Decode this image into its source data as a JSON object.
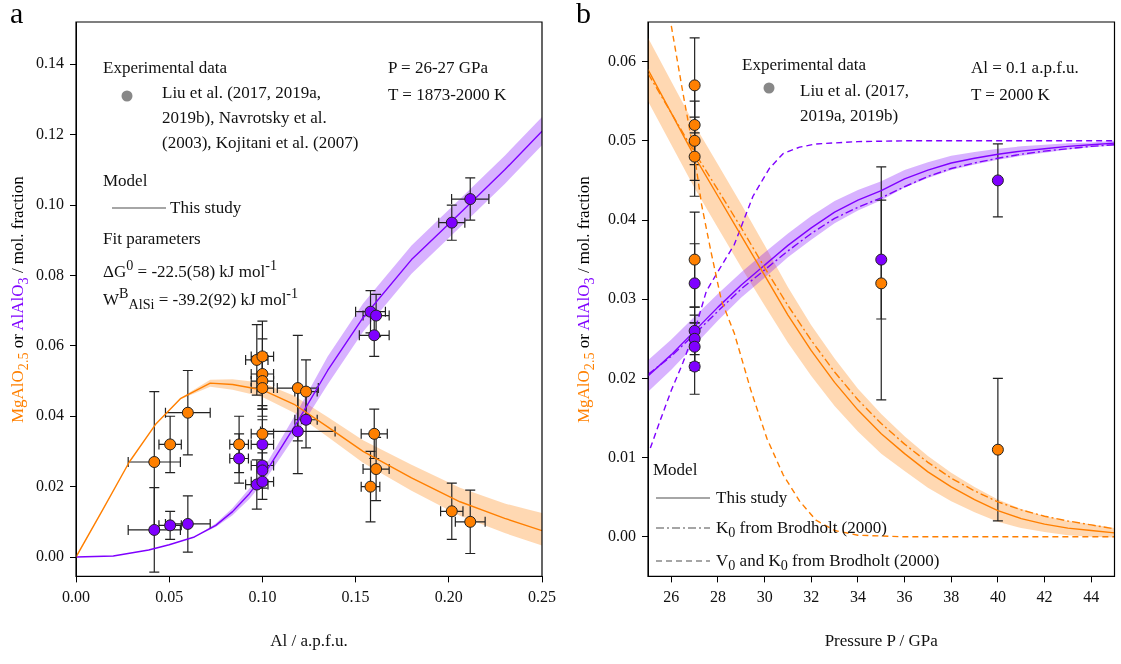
{
  "chart_data": [
    {
      "type": "scatter",
      "title": "a",
      "xlabel": "Al / a.p.f.u.",
      "ylabel": "MgAlO$_{2.5}$ or AlAlO$_{3}$ / mol. fraction",
      "xlim": [
        0,
        0.25
      ],
      "ylim": [
        -0.0055,
        0.152
      ],
      "xticks": [
        {
          "value": 0,
          "label": "0.00"
        },
        {
          "value": 0.05,
          "label": "0.05"
        },
        {
          "value": 0.1,
          "label": "0.10"
        },
        {
          "value": 0.15,
          "label": "0.15"
        },
        {
          "value": 0.2,
          "label": "0.20"
        },
        {
          "value": 0.25,
          "label": "0.25"
        }
      ],
      "yticks": [
        {
          "value": 0,
          "label": "0.00"
        },
        {
          "value": 0.02,
          "label": "0.02"
        },
        {
          "value": 0.04,
          "label": "0.04"
        },
        {
          "value": 0.06,
          "label": "0.06"
        },
        {
          "value": 0.08,
          "label": "0.08"
        },
        {
          "value": 0.1,
          "label": "0.10"
        },
        {
          "value": 0.12,
          "label": "0.12"
        },
        {
          "value": 0.14,
          "label": "0.14"
        }
      ],
      "grid": false,
      "legend": false,
      "annotations": [
        "Experimental data",
        "Liu et al. (2017, 2019a, 2019b), Navrotsky et al. (2003), Kojitani et al. (2007)",
        "Model",
        "This study",
        "Fit parameters",
        "ΔG$^{0}$ = -22.5(58) kJ mol$^{-1}$",
        "W$^{B}$$_{AlSi}$ = -39.2(92) kJ mol$^{-1}$",
        "P = 26-27 GPa",
        "T = 1873-2000 K"
      ],
      "series": [
        {
          "type": "scatter",
          "marker": "circle",
          "color": "#ff8000",
          "x": [
            0.042,
            0.0505,
            0.06,
            0.0875,
            0.097,
            0.1,
            0.1,
            0.1,
            0.1,
            0.1,
            0.119,
            0.1234,
            0.16,
            0.161,
            0.158,
            0.2016,
            0.2115
          ],
          "values": [
            0.027,
            0.032,
            0.041,
            0.032,
            0.056,
            0.057,
            0.052,
            0.05,
            0.048,
            0.035,
            0.048,
            0.047,
            0.035,
            0.025,
            0.02,
            0.013,
            0.01
          ],
          "errors": [
            0.02,
            0.008,
            0.012,
            0.008,
            0.01,
            0.01,
            0.01,
            0.008,
            0.008,
            0.008,
            0.015,
            0.009,
            0.007,
            0.009,
            0.01,
            0.008,
            0.009
          ],
          "xerrors": [
            0.014,
            0.006,
            0.012,
            0.005,
            0.006,
            0.006,
            0.006,
            0.006,
            0.006,
            0.006,
            0.011,
            0.006,
            0.007,
            0.007,
            0.005,
            0.006,
            0.008
          ]
        },
        {
          "type": "scatter",
          "marker": "circle",
          "color": "#7f00ff",
          "x": [
            0.042,
            0.0505,
            0.06,
            0.0875,
            0.097,
            0.1,
            0.1,
            0.1,
            0.1,
            0.119,
            0.1234,
            0.158,
            0.161,
            0.16,
            0.2016,
            0.2115
          ],
          "values": [
            0.0077,
            0.009,
            0.0094,
            0.028,
            0.0206,
            0.032,
            0.026,
            0.0246,
            0.0214,
            0.0357,
            0.039,
            0.0697,
            0.0686,
            0.063,
            0.095,
            0.1017
          ],
          "errors": [
            0.012,
            0.004,
            0.008,
            0.007,
            0.007,
            0.007,
            0.005,
            0.005,
            0.005,
            0.012,
            0.008,
            0.006,
            0.006,
            0.006,
            0.005,
            0.006
          ],
          "xerrors": [
            0.014,
            0.006,
            0.012,
            0.005,
            0.006,
            0.006,
            0.006,
            null,
            0.006,
            0.02,
            0.006,
            0.008,
            0.007,
            0.008,
            0.007,
            0.01
          ]
        },
        {
          "type": "line",
          "color": "#ff7f00",
          "line_style": "solid",
          "x": [
            0,
            0.0146,
            0.0286,
            0.0427,
            0.056,
            0.072,
            0.084,
            0.1,
            0.117,
            0.135,
            0.154,
            0.18,
            0.206,
            0.23,
            0.25
          ],
          "values": [
            0,
            0.0137,
            0.027,
            0.0377,
            0.045,
            0.0494,
            0.049,
            0.0475,
            0.0434,
            0.037,
            0.03,
            0.0225,
            0.0157,
            0.011,
            0.0075
          ],
          "lower": [
            0,
            0.0137,
            0.027,
            0.0377,
            0.0448,
            0.0484,
            0.0475,
            0.0455,
            0.041,
            0.0342,
            0.0268,
            0.0188,
            0.0117,
            0.0068,
            0.0033
          ],
          "upper": [
            0,
            0.0137,
            0.027,
            0.0377,
            0.0452,
            0.0504,
            0.0505,
            0.0495,
            0.0458,
            0.0398,
            0.0332,
            0.0262,
            0.0197,
            0.0152,
            0.0125
          ]
        },
        {
          "type": "line",
          "color": "#7f00ff",
          "line_style": "solid",
          "x": [
            0,
            0.02,
            0.039,
            0.05,
            0.0635,
            0.075,
            0.084,
            0.093,
            0.1016,
            0.11,
            0.119,
            0.135,
            0.154,
            0.18,
            0.206,
            0.23,
            0.25
          ],
          "values": [
            0,
            0.0003,
            0.002,
            0.0035,
            0.0057,
            0.009,
            0.0129,
            0.018,
            0.024,
            0.031,
            0.0386,
            0.053,
            0.068,
            0.0845,
            0.0977,
            0.11,
            0.121
          ],
          "lower": [
            0,
            0.0003,
            0.002,
            0.0035,
            0.0057,
            0.0085,
            0.0119,
            0.0165,
            0.022,
            0.0285,
            0.0356,
            0.049,
            0.064,
            0.0805,
            0.0937,
            0.106,
            0.117
          ],
          "upper": [
            0,
            0.0003,
            0.002,
            0.0035,
            0.0057,
            0.0095,
            0.0139,
            0.0195,
            0.026,
            0.0335,
            0.0416,
            0.057,
            0.072,
            0.0885,
            0.1017,
            0.114,
            0.125
          ]
        }
      ]
    },
    {
      "type": "scatter",
      "title": "b",
      "xlabel": "Pressure P / GPa",
      "ylabel": "MgAlO$_{2.5}$ or AlAlO$_{3}$ / mol. fraction",
      "xlim": [
        25,
        45
      ],
      "ylim": [
        -0.005,
        0.065
      ],
      "xticks": [
        26,
        28,
        30,
        32,
        34,
        36,
        38,
        40,
        42,
        44
      ],
      "yticks": [
        {
          "value": 0,
          "label": "0.00"
        },
        {
          "value": 0.01,
          "label": "0.01"
        },
        {
          "value": 0.02,
          "label": "0.02"
        },
        {
          "value": 0.03,
          "label": "0.03"
        },
        {
          "value": 0.04,
          "label": "0.04"
        },
        {
          "value": 0.05,
          "label": "0.05"
        },
        {
          "value": 0.06,
          "label": "0.06"
        }
      ],
      "grid": false,
      "legend": false,
      "annotations": [
        "Experimental data",
        "Liu et al. (2017, 2019a, 2019b)",
        "Al = 0.1 a.p.f.u.",
        "T = 2000 K",
        "Model",
        "This study",
        "K$_{0}$ from Brodholt (2000)",
        "V$_{0}$ and K$_{0}$ from Brodholt (2000)"
      ],
      "series": [
        {
          "type": "scatter",
          "marker": "circle",
          "color": "#ff8000",
          "x": [
            27,
            27,
            27,
            27,
            27,
            35,
            40
          ],
          "values": [
            0.057,
            0.052,
            0.05,
            0.048,
            0.035,
            0.032,
            0.011
          ],
          "errors": [
            0.006,
            0.005,
            0.005,
            0.005,
            0.006,
            0.0147,
            0.009
          ]
        },
        {
          "type": "scatter",
          "marker": "circle",
          "color": "#7f00ff",
          "x": [
            27,
            27,
            27,
            27,
            27,
            35,
            40
          ],
          "values": [
            0.032,
            0.026,
            0.025,
            0.024,
            0.0215,
            0.035,
            0.045
          ],
          "errors": [
            0.005,
            0.003,
            0.003,
            0.003,
            0.0035,
            0.0075,
            0.0046
          ]
        },
        {
          "type": "line",
          "color": "#ff7f00",
          "line_style": "solid",
          "x": [
            25,
            26,
            27,
            28,
            29,
            30,
            31,
            32,
            33,
            34,
            35,
            36,
            37,
            38,
            39,
            40,
            41,
            42,
            43,
            44,
            45
          ],
          "values": [
            0.059,
            0.0535,
            0.048,
            0.043,
            0.038,
            0.033,
            0.028,
            0.0235,
            0.0195,
            0.016,
            0.013,
            0.0105,
            0.0082,
            0.0063,
            0.0047,
            0.0033,
            0.0023,
            0.0016,
            0.0011,
            0.0008,
            0.0005
          ],
          "lower": [
            0.055,
            0.0495,
            0.044,
            0.039,
            0.034,
            0.0292,
            0.0245,
            0.0203,
            0.0165,
            0.0133,
            0.0105,
            0.0083,
            0.0062,
            0.0045,
            0.0031,
            0.0019,
            0.0011,
            0.0006,
            0.0002,
            0,
            -0.0001
          ],
          "upper": [
            0.063,
            0.0575,
            0.052,
            0.047,
            0.042,
            0.0368,
            0.0315,
            0.0267,
            0.0225,
            0.0187,
            0.0155,
            0.0127,
            0.0102,
            0.0081,
            0.0063,
            0.0047,
            0.0035,
            0.0026,
            0.002,
            0.0016,
            0.0011
          ]
        },
        {
          "type": "line",
          "color": "#ff7f00",
          "line_style": "dashdot",
          "x": [
            25,
            26,
            27,
            28,
            29,
            30,
            31,
            32,
            33,
            34,
            35,
            36,
            37,
            38,
            39,
            40,
            41,
            42,
            43,
            44,
            45
          ],
          "values": [
            0.0585,
            0.0535,
            0.0485,
            0.0438,
            0.039,
            0.034,
            0.0292,
            0.0248,
            0.0208,
            0.0173,
            0.0143,
            0.0117,
            0.0094,
            0.0074,
            0.0058,
            0.0044,
            0.0034,
            0.0026,
            0.002,
            0.0015,
            0.001
          ]
        },
        {
          "type": "line",
          "color": "#ff7f00",
          "line_style": "dashed",
          "x": [
            26,
            26.5,
            27,
            27.3,
            27.7,
            28.15,
            28.7,
            29.4,
            30.1,
            30.8,
            31.5,
            32.2,
            33,
            34,
            36,
            40,
            45
          ],
          "values": [
            0.0645,
            0.056,
            0.048,
            0.0419,
            0.036,
            0.0298,
            0.0257,
            0.0186,
            0.0124,
            0.0078,
            0.0045,
            0.0021,
            0.0008,
            0.0002,
            0,
            0,
            0
          ]
        },
        {
          "type": "line",
          "color": "#7f00ff",
          "line_style": "solid",
          "x": [
            25,
            26,
            27,
            28,
            29,
            30,
            31,
            32,
            33,
            34,
            35,
            36,
            37,
            38,
            39,
            40,
            41,
            42,
            43,
            44,
            45
          ],
          "values": [
            0.0203,
            0.023,
            0.026,
            0.029,
            0.0318,
            0.0343,
            0.0368,
            0.039,
            0.041,
            0.0425,
            0.0437,
            0.0452,
            0.0463,
            0.0472,
            0.0478,
            0.0483,
            0.0487,
            0.049,
            0.0493,
            0.0495,
            0.0497
          ],
          "lower": [
            0.0183,
            0.0211,
            0.0242,
            0.0273,
            0.0302,
            0.0327,
            0.0353,
            0.0375,
            0.0396,
            0.0412,
            0.0425,
            0.0441,
            0.0453,
            0.0463,
            0.047,
            0.0476,
            0.0481,
            0.0485,
            0.0489,
            0.0492,
            0.0494
          ],
          "upper": [
            0.0223,
            0.0249,
            0.0278,
            0.0307,
            0.0334,
            0.0359,
            0.0383,
            0.0405,
            0.0424,
            0.0438,
            0.0449,
            0.0463,
            0.0473,
            0.0481,
            0.0486,
            0.049,
            0.0493,
            0.0495,
            0.0497,
            0.0498,
            0.05
          ]
        },
        {
          "type": "line",
          "color": "#7f00ff",
          "line_style": "dashdot",
          "x": [
            25,
            26,
            27,
            28,
            29,
            30,
            31,
            32,
            33,
            34,
            35,
            36,
            37,
            38,
            39,
            40,
            41,
            42,
            43,
            44,
            45
          ],
          "values": [
            0.0205,
            0.0228,
            0.0256,
            0.0285,
            0.0313,
            0.0337,
            0.0361,
            0.0383,
            0.0402,
            0.0416,
            0.0428,
            0.0442,
            0.0455,
            0.0465,
            0.0472,
            0.0478,
            0.0483,
            0.0487,
            0.049,
            0.0493,
            0.0495
          ]
        },
        {
          "type": "line",
          "color": "#7f00ff",
          "line_style": "dashed",
          "x": [
            25.1,
            25.5,
            26,
            26.5,
            27,
            27.5,
            28,
            28.7,
            29.5,
            30.2,
            30.8,
            31.5,
            32.2,
            34,
            36,
            40,
            45
          ],
          "values": [
            0.0112,
            0.0145,
            0.0185,
            0.022,
            0.026,
            0.031,
            0.0335,
            0.0369,
            0.043,
            0.0465,
            0.0484,
            0.0492,
            0.0496,
            0.0499,
            0.05,
            0.05,
            0.05
          ]
        }
      ]
    }
  ]
}
